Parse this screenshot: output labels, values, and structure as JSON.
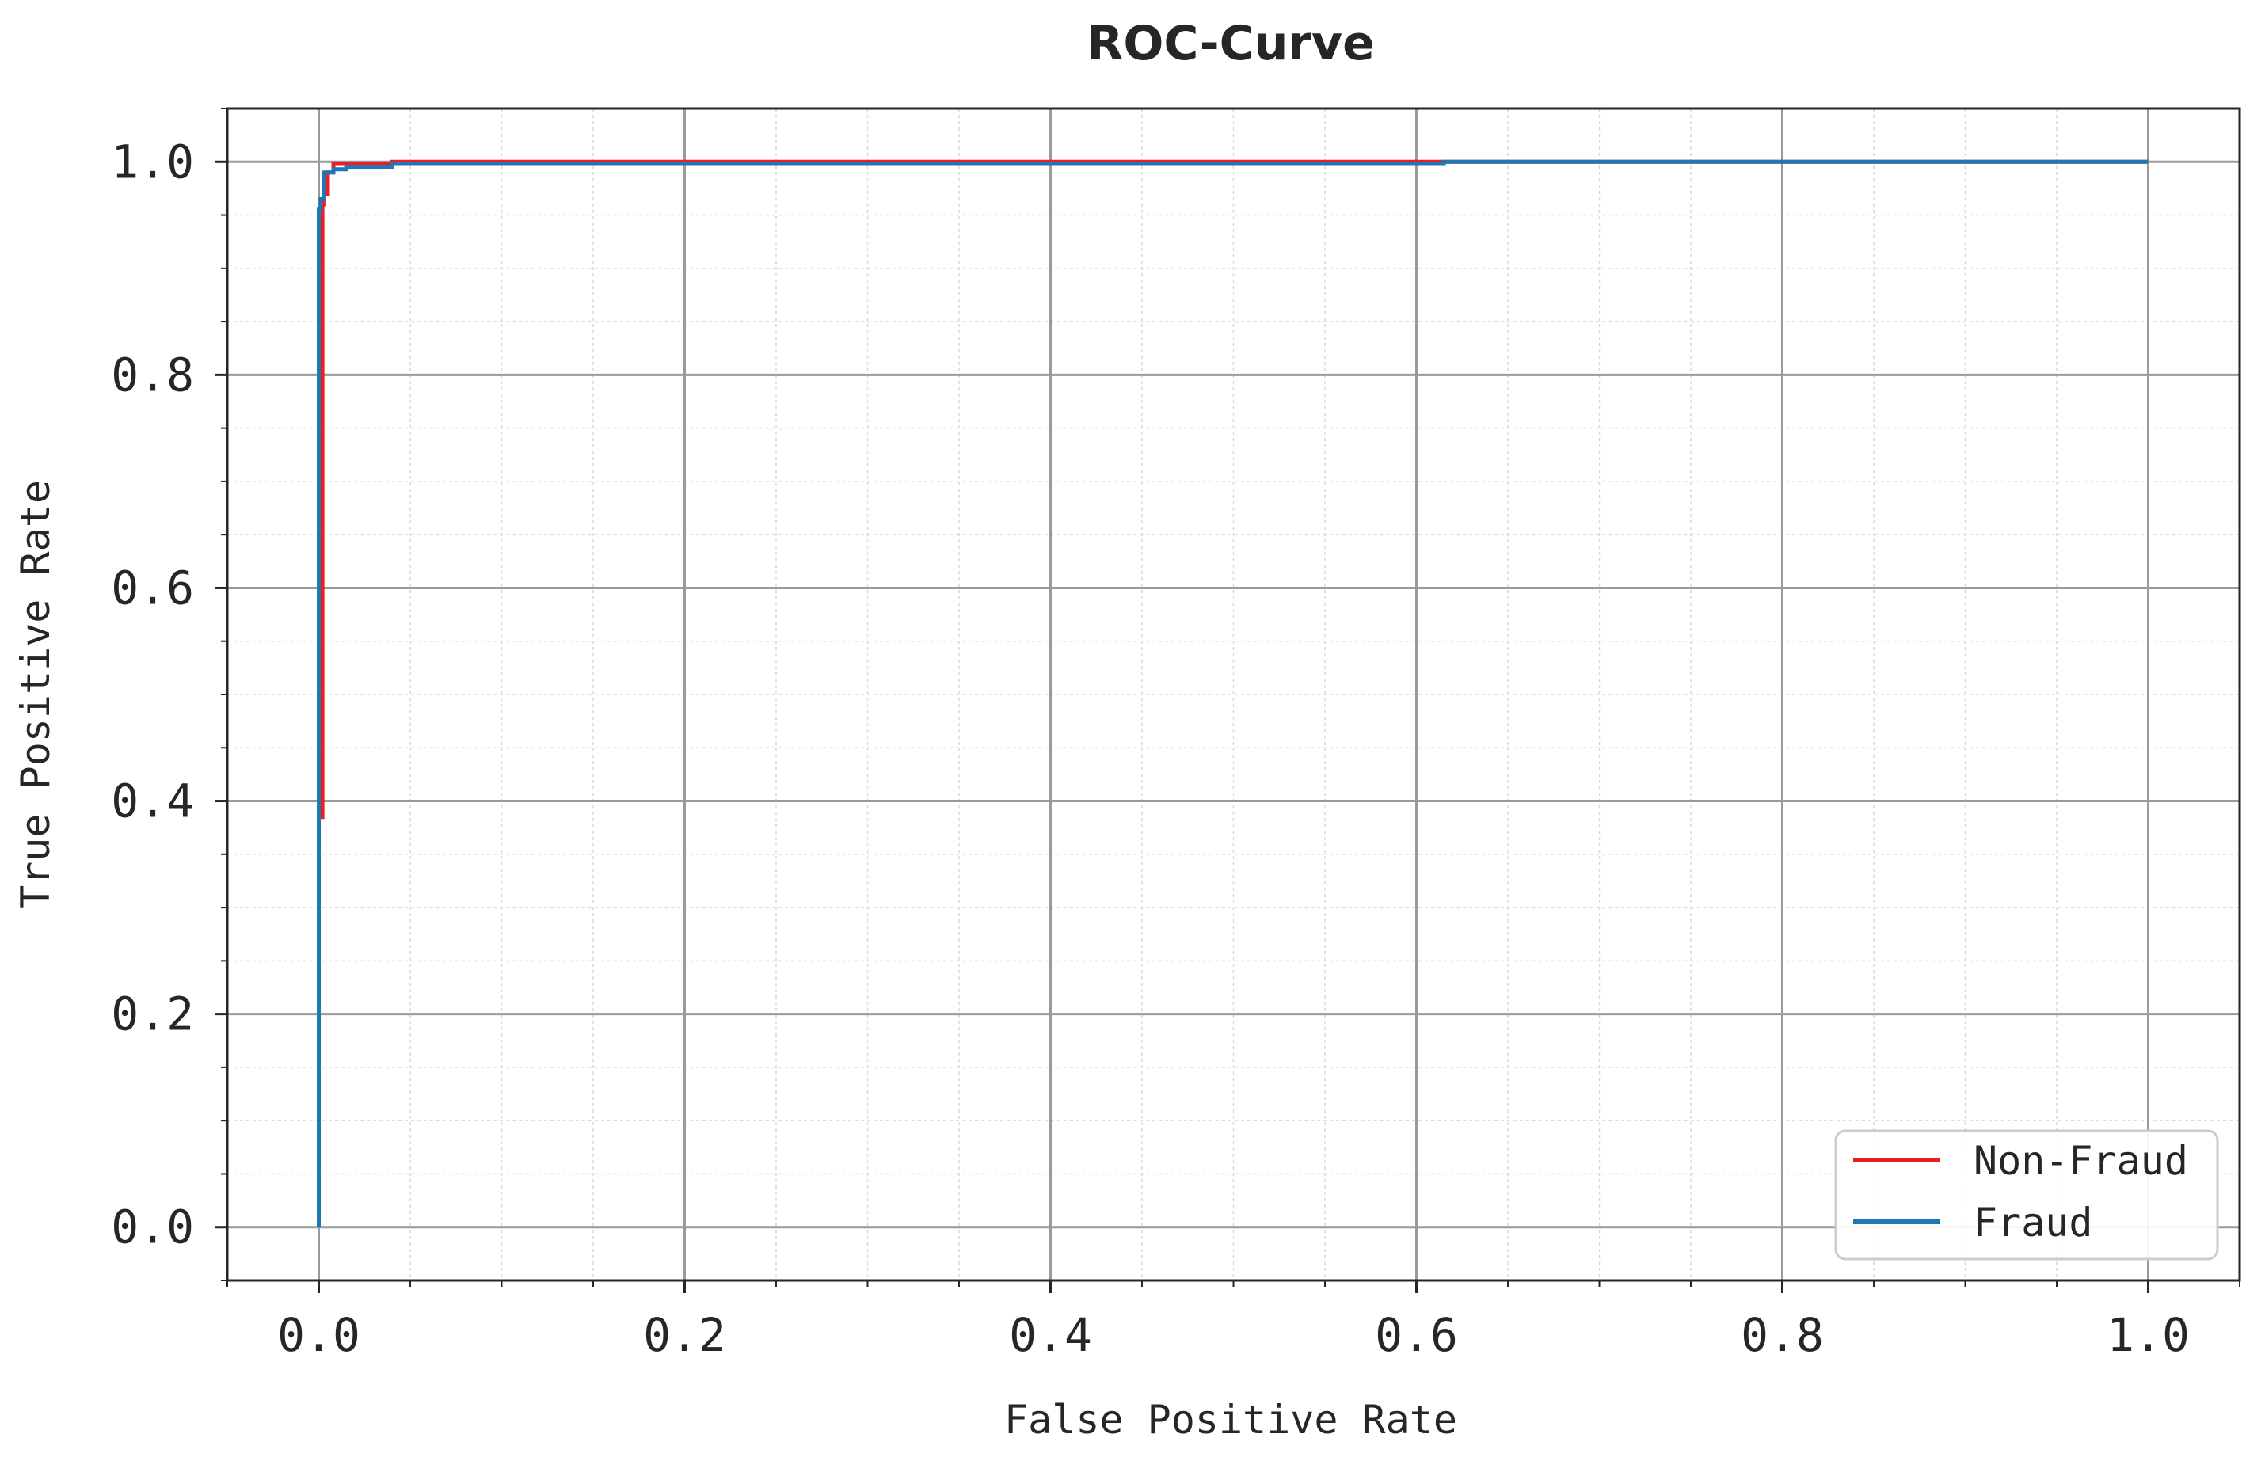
{
  "chart_data": {
    "type": "line",
    "title": "ROC-Curve",
    "xlabel": "False Positive Rate",
    "ylabel": "True Positive Rate",
    "xlim": [
      -0.05,
      1.05
    ],
    "ylim": [
      -0.05,
      1.05
    ],
    "x_ticks": [
      "0.0",
      "0.2",
      "0.4",
      "0.6",
      "0.8",
      "1.0"
    ],
    "y_ticks": [
      "0.0",
      "0.2",
      "0.4",
      "0.6",
      "0.8",
      "1.0"
    ],
    "grid": true,
    "minor_grid": true,
    "legend_position": "lower-right",
    "series": [
      {
        "name": "Non-Fraud",
        "color": "#ee1c25",
        "x": [
          0.0,
          0.0,
          0.002,
          0.002,
          0.003,
          0.003,
          0.005,
          0.005,
          0.008,
          0.008,
          0.04,
          0.04,
          0.61,
          0.61,
          1.0
        ],
        "y": [
          0.0,
          0.385,
          0.385,
          0.96,
          0.96,
          0.97,
          0.97,
          0.99,
          0.99,
          0.998,
          0.998,
          1.0,
          1.0,
          1.0,
          1.0
        ]
      },
      {
        "name": "Fraud",
        "color": "#1f77b4",
        "x": [
          0.0,
          0.0,
          0.001,
          0.001,
          0.003,
          0.003,
          0.008,
          0.008,
          0.015,
          0.015,
          0.04,
          0.04,
          0.615,
          0.615,
          1.0
        ],
        "y": [
          0.0,
          0.955,
          0.955,
          0.965,
          0.965,
          0.99,
          0.99,
          0.993,
          0.993,
          0.995,
          0.995,
          0.998,
          0.998,
          1.0,
          1.0
        ]
      }
    ]
  }
}
